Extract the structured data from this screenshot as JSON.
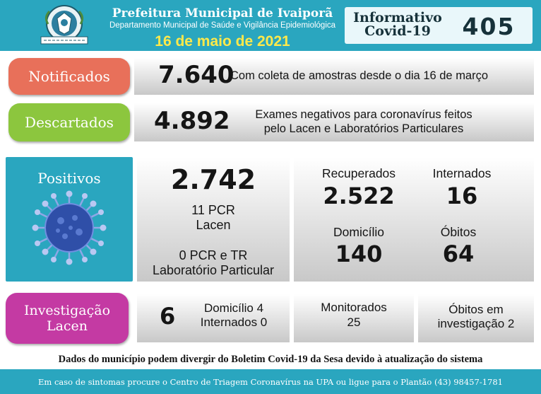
{
  "header": {
    "title": "Prefeitura Municipal de Ivaiporã",
    "subtitle": "Departamento Municipal de Saúde e Vigilância Epidemiológica",
    "date": "16 de maio de 2021",
    "informativo_label": "Informativo Covid-19",
    "informativo_number": "405"
  },
  "notificados": {
    "label": "Notificados",
    "value": "7.640",
    "description": "Com coleta de amostras desde o dia 16 de março"
  },
  "descartados": {
    "label": "Descartados",
    "value": "4.892",
    "description_line1": "Exames negativos para coronavírus feitos",
    "description_line2": "pelo Lacen e Laboratórios Particulares"
  },
  "positivos": {
    "label": "Positivos",
    "value": "2.742",
    "lacen_line1": "11 PCR",
    "lacen_line2": "Lacen",
    "particular_line1": "0 PCR e TR",
    "particular_line2": "Laboratório Particular",
    "recuperados_label": "Recuperados",
    "recuperados_value": "2.522",
    "internados_label": "Internados",
    "internados_value": "16",
    "domicilio_label": "Domicílio",
    "domicilio_value": "140",
    "obitos_label": "Óbitos",
    "obitos_value": "64"
  },
  "investigacao": {
    "label_line1": "Investigação",
    "label_line2": "Lacen",
    "value": "6",
    "domicilio": "Domicílio 4",
    "internados": "Internados 0",
    "monitorados_label": "Monitorados",
    "monitorados_value": "25",
    "obitos_line1": "Óbitos em",
    "obitos_line2": "investigação 2"
  },
  "footer": {
    "note": "Dados do município podem divergir do Boletim Covid-19 da Sesa devido à atualização do sistema",
    "contact": "Em caso de sintomas procure o Centro de Triagem Coronavírus na UPA ou ligue para o Plantão (43) 98457-1781"
  },
  "colors": {
    "header": "#2aa6bf",
    "notificados": "#e8705a",
    "descartados": "#8cc63e",
    "positivos": "#2aa6bf",
    "investigacao": "#c43aa3",
    "date_text": "#ffe94a"
  }
}
